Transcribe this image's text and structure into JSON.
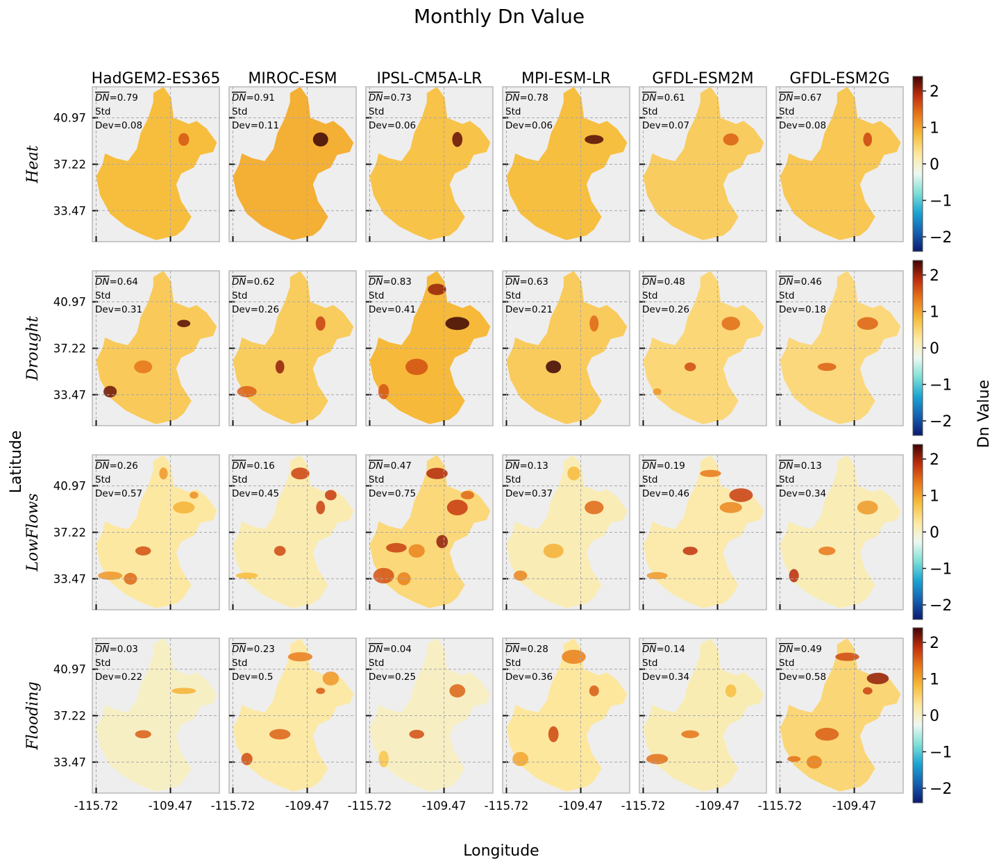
{
  "chart_data": {
    "type": "heatmap",
    "title": "Monthly Dn Value",
    "xlabel": "Longitude",
    "ylabel": "Latitude",
    "colorbar_label": "Dn Value",
    "colorbar_ticks": [
      "2",
      "1",
      "0",
      "−1",
      "−2"
    ],
    "colorbar_range": [
      -2.4,
      2.4
    ],
    "colormap": [
      "#0a1a6e",
      "#1560b0",
      "#1aa4d3",
      "#7fe0d6",
      "#eef8f2",
      "#fde8a0",
      "#f7bd3c",
      "#e87a1a",
      "#bf2e0d",
      "#3d0505"
    ],
    "x_ticks": [
      "-115.72",
      "-109.47"
    ],
    "y_ticks": [
      "40.97",
      "37.22",
      "33.47"
    ],
    "models": [
      "HadGEM2-ES365",
      "MIROC-ESM",
      "IPSL-CM5A-LR",
      "MPI-ESM-LR",
      "GFDL-ESM2M",
      "GFDL-ESM2G"
    ],
    "rows": [
      {
        "hazard": "Heat",
        "panels": [
          {
            "dn": "0.79",
            "std": "Std",
            "dev": "Dev=0.08",
            "dn_value": 0.79
          },
          {
            "dn": "0.91",
            "std": "Std",
            "dev": "Dev=0.11",
            "dn_value": 0.91
          },
          {
            "dn": "0.73",
            "std": "Std",
            "dev": "Dev=0.06",
            "dn_value": 0.73
          },
          {
            "dn": "0.78",
            "std": "Std",
            "dev": "Dev=0.06",
            "dn_value": 0.78
          },
          {
            "dn": "0.61",
            "std": "Std",
            "dev": "Dev=0.07",
            "dn_value": 0.61
          },
          {
            "dn": "0.67",
            "std": "Std",
            "dev": "Dev=0.08",
            "dn_value": 0.67
          }
        ]
      },
      {
        "hazard": "Drought",
        "panels": [
          {
            "dn": "0.64",
            "std": "Std",
            "dev": "Dev=0.31",
            "dn_value": 0.64
          },
          {
            "dn": "0.62",
            "std": "Std",
            "dev": "Dev=0.26",
            "dn_value": 0.62
          },
          {
            "dn": "0.83",
            "std": "Std",
            "dev": "Dev=0.41",
            "dn_value": 0.83
          },
          {
            "dn": "0.63",
            "std": "Std",
            "dev": "Dev=0.21",
            "dn_value": 0.63
          },
          {
            "dn": "0.48",
            "std": "Std",
            "dev": "Dev=0.26",
            "dn_value": 0.48
          },
          {
            "dn": "0.46",
            "std": "Std",
            "dev": "Dev=0.18",
            "dn_value": 0.46
          }
        ]
      },
      {
        "hazard": "LowFlows",
        "panels": [
          {
            "dn": "0.26",
            "std": "Std",
            "dev": "Dev=0.57",
            "dn_value": 0.26
          },
          {
            "dn": "0.16",
            "std": "Std",
            "dev": "Dev=0.45",
            "dn_value": 0.16
          },
          {
            "dn": "0.47",
            "std": "Std",
            "dev": "Dev=0.75",
            "dn_value": 0.47
          },
          {
            "dn": "0.13",
            "std": "Std",
            "dev": "Dev=0.37",
            "dn_value": 0.13
          },
          {
            "dn": "0.19",
            "std": "Std",
            "dev": "Dev=0.46",
            "dn_value": 0.19
          },
          {
            "dn": "0.13",
            "std": "Std",
            "dev": "Dev=0.34",
            "dn_value": 0.13
          }
        ]
      },
      {
        "hazard": "Flooding",
        "panels": [
          {
            "dn": "0.03",
            "std": "Std",
            "dev": "Dev=0.22",
            "dn_value": 0.03
          },
          {
            "dn": "0.23",
            "std": "Std",
            "dev": "Dev=0.5",
            "dn_value": 0.23
          },
          {
            "dn": "0.04",
            "std": "Std",
            "dev": "Dev=0.25",
            "dn_value": 0.04
          },
          {
            "dn": "0.28",
            "std": "Std",
            "dev": "Dev=0.36",
            "dn_value": 0.28
          },
          {
            "dn": "0.14",
            "std": "Std",
            "dev": "Dev=0.34",
            "dn_value": 0.14
          },
          {
            "dn": "0.49",
            "std": "Std",
            "dev": "Dev=0.58",
            "dn_value": 0.49
          }
        ]
      }
    ]
  }
}
